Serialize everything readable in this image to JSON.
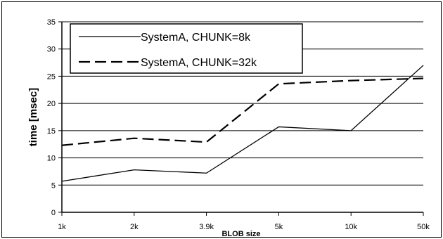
{
  "chart_data": {
    "type": "line",
    "categories": [
      "1k",
      "2k",
      "3.9k",
      "5k",
      "10k",
      "50k"
    ],
    "xlabel": "BLOB size",
    "ylabel": "time [msec]",
    "ylim": [
      0,
      35
    ],
    "yticks": [
      0,
      5,
      10,
      15,
      20,
      25,
      30,
      35
    ],
    "grid": "horizontal",
    "legend": "top-left",
    "series": [
      {
        "name": "SystemA, CHUNK=8k",
        "values": [
          5.7,
          7.8,
          7.2,
          15.7,
          15.0,
          27.0
        ],
        "color": "#000000",
        "style": "solid"
      },
      {
        "name": "SystemA, CHUNK=32k",
        "values": [
          12.3,
          13.6,
          12.9,
          23.6,
          24.2,
          24.6
        ],
        "color": "#000000",
        "style": "dashed"
      }
    ]
  }
}
